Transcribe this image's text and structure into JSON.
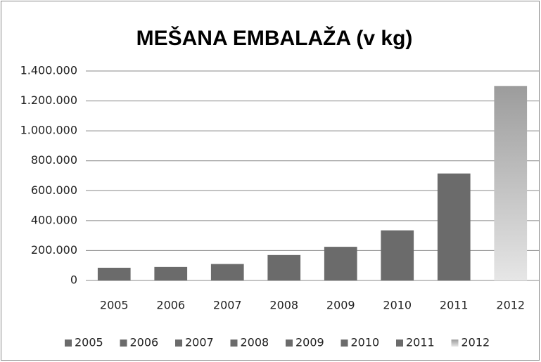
{
  "chart_data": {
    "type": "bar",
    "title": "MEŠANA EMBALAŽA (v kg)",
    "categories": [
      "2005",
      "2006",
      "2007",
      "2008",
      "2009",
      "2010",
      "2011",
      "2012"
    ],
    "values": [
      85000,
      90000,
      110000,
      170000,
      225000,
      335000,
      715000,
      1300000
    ],
    "colors": [
      "#6b6b6b",
      "#6b6b6b",
      "#6b6b6b",
      "#6b6b6b",
      "#6b6b6b",
      "#6b6b6b",
      "#6b6b6b",
      [
        "#9c9c9c",
        "#e6e6e6"
      ]
    ],
    "ylim": [
      0,
      1400000
    ],
    "yticks": [
      0,
      {
        "value": 200000,
        "label": "200.000"
      },
      {
        "value": 400000,
        "label": "400.000"
      },
      {
        "value": 600000,
        "label": "600.000"
      },
      {
        "value": 800000,
        "label": "800.000"
      },
      {
        "value": 1000000,
        "label": "1.000.000"
      },
      {
        "value": 1200000,
        "label": "1.200.000"
      },
      {
        "value": 1400000,
        "label": "1.400.000"
      }
    ],
    "grid": true,
    "legend": "bottom"
  }
}
